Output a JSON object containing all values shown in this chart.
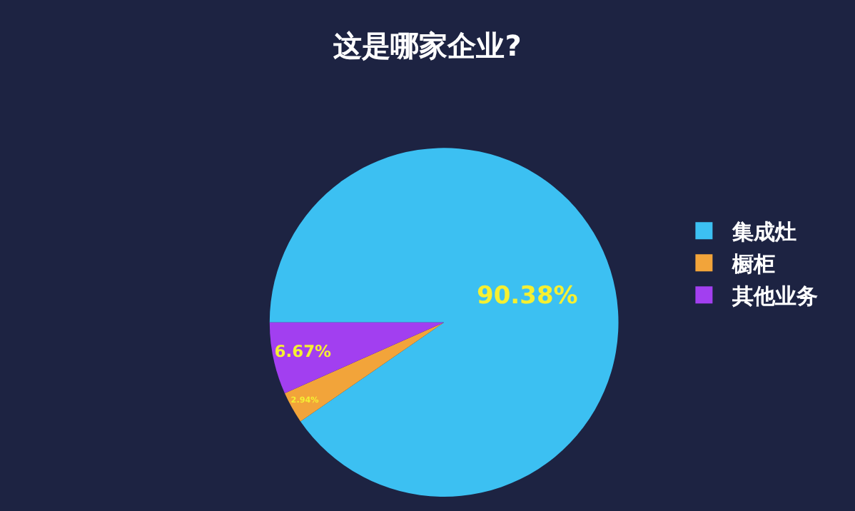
{
  "chart_data": {
    "type": "pie",
    "title": "这是哪家企业?",
    "categories": [
      "集成灶",
      "橱柜",
      "其他业务"
    ],
    "values": [
      90.38,
      2.94,
      6.67
    ],
    "colors": [
      "#3cc0f2",
      "#f2a43a",
      "#a23ff0"
    ],
    "value_labels": [
      "90.38%",
      "2.94%",
      "6.67%"
    ],
    "legend": "right"
  }
}
